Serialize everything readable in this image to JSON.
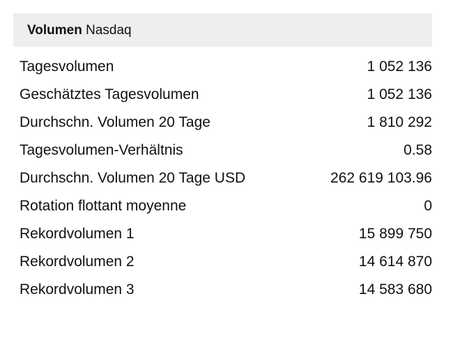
{
  "header": {
    "title": "Volumen",
    "exchange": "Nasdaq"
  },
  "rows": [
    {
      "label": "Tagesvolumen",
      "value": "1 052 136"
    },
    {
      "label": "Geschätztes Tagesvolumen",
      "value": "1 052 136"
    },
    {
      "label": "Durchschn. Volumen 20 Tage",
      "value": "1 810 292"
    },
    {
      "label": "Tagesvolumen-Verhältnis",
      "value": "0.58"
    },
    {
      "label": "Durchschn. Volumen 20 Tage USD",
      "value": "262 619 103.96"
    },
    {
      "label": "Rotation flottant moyenne",
      "value": "0"
    },
    {
      "label": "Rekordvolumen 1",
      "value": "15 899 750"
    },
    {
      "label": "Rekordvolumen 2",
      "value": "14 614 870"
    },
    {
      "label": "Rekordvolumen 3",
      "value": "14 583 680"
    }
  ]
}
